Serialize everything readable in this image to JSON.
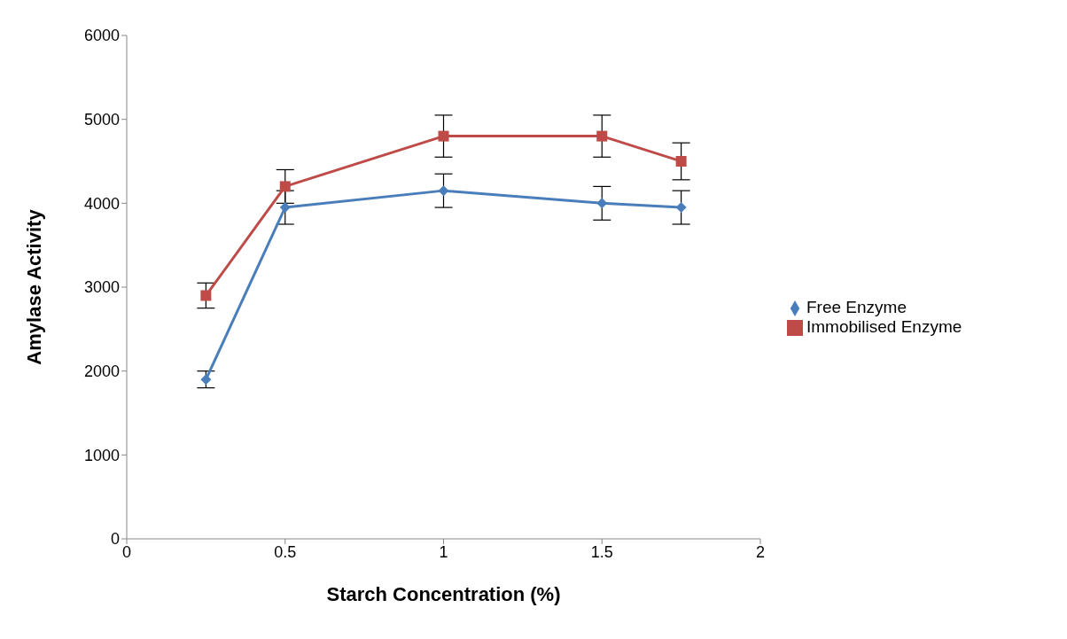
{
  "chart_data": {
    "type": "line",
    "xlabel": "Starch Concentration (%)",
    "ylabel": "Amylase Activity",
    "x": [
      0.25,
      0.5,
      1,
      1.5,
      1.75
    ],
    "series": [
      {
        "name": "Free Enzyme",
        "color": "#4a7ebb",
        "marker": "diamond",
        "values": [
          1900,
          3950,
          4150,
          4000,
          3950
        ],
        "errors": [
          100,
          200,
          200,
          200,
          200
        ]
      },
      {
        "name": "Immobilised Enzyme",
        "color": "#be4b48",
        "marker": "square",
        "values": [
          2900,
          4200,
          4800,
          4800,
          4500
        ],
        "errors": [
          150,
          200,
          250,
          250,
          220
        ]
      }
    ],
    "xlim": [
      0,
      2
    ],
    "xticks": [
      0,
      0.5,
      1,
      1.5,
      2
    ],
    "ylim": [
      0,
      6000
    ],
    "yticks": [
      0,
      1000,
      2000,
      3000,
      4000,
      5000,
      6000
    ],
    "grid": false,
    "legend": "right"
  }
}
